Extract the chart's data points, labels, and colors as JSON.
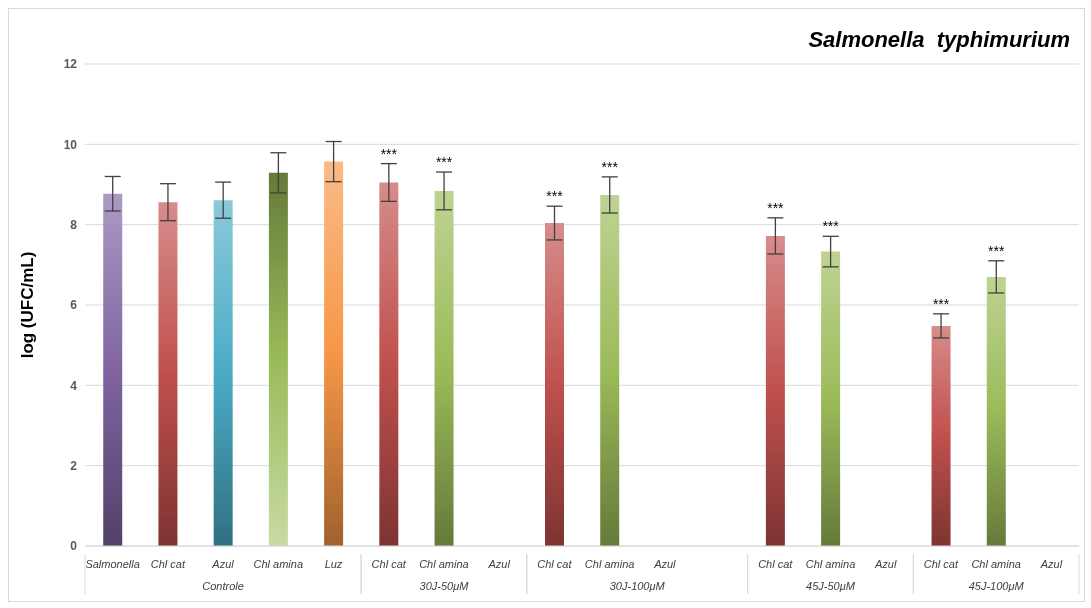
{
  "chart_data": {
    "type": "bar",
    "title": "Salmonella  typhimurium",
    "ylabel": "log (UFC/mL)",
    "categories": [
      "Salmonella",
      "Chl cat",
      "Azul",
      "Chl amina",
      "Luz",
      "Chl cat",
      "Chl amina",
      "Azul",
      "Chl cat",
      "Chl amina",
      "Azul",
      null,
      "Chl cat",
      "Chl amina",
      "Azul",
      "Chl cat",
      "Chl amina",
      "Azul"
    ],
    "values": [
      8.77,
      8.56,
      8.61,
      9.29,
      9.57,
      9.05,
      8.84,
      null,
      8.04,
      8.74,
      null,
      null,
      7.72,
      7.33,
      null,
      5.48,
      6.7,
      null
    ],
    "errors": [
      0.43,
      0.46,
      0.45,
      0.5,
      0.5,
      0.47,
      0.47,
      null,
      0.42,
      0.45,
      null,
      null,
      0.45,
      0.38,
      null,
      0.3,
      0.4,
      null
    ],
    "colors": [
      "#8064a2",
      "#c0504d",
      "#4bacc6",
      "#9bbb59",
      "#f79646",
      "#c0504d",
      "#9bbb59",
      "#4bacc6",
      "#c0504d",
      "#9bbb59",
      "#4bacc6",
      "#4bacc6",
      "#c0504d",
      "#9bbb59",
      "#4bacc6",
      "#c0504d",
      "#9bbb59",
      "#4bacc6"
    ],
    "value_labels": [
      null,
      null,
      null,
      null,
      null,
      "***",
      "***",
      null,
      "***",
      "***",
      null,
      null,
      "***",
      "***",
      null,
      "***",
      "***",
      null
    ],
    "annotations": [
      "Controle",
      "30J-50μM",
      "30J-100μM",
      "45J-50μM",
      "45J-100μM"
    ],
    "ylim": [
      0,
      12
    ],
    "yticks": [
      0,
      2,
      4,
      6,
      8,
      10,
      12
    ],
    "grid": "y",
    "legend": false
  }
}
